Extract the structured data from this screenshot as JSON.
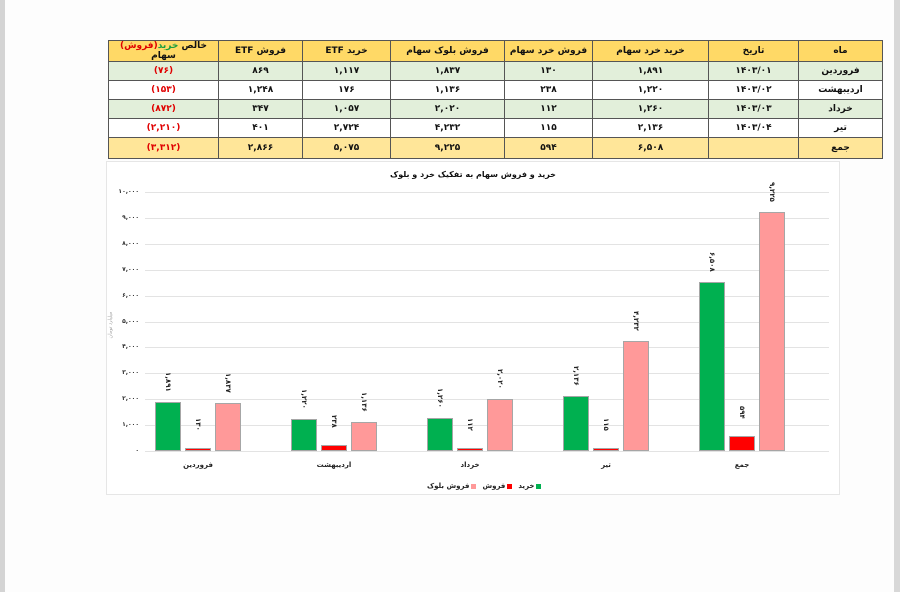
{
  "table": {
    "headers": [
      "ماه",
      "تاریخ",
      "خرید خرد سهام",
      "فروش خرد سهام",
      "فروش بلوک سهام",
      "خرید ETF",
      "فروش ETF"
    ],
    "net_header": {
      "prefix": "خالص ",
      "buy": "خرید",
      "sell": "(فروش)",
      "suffix": " سهام"
    },
    "rows": [
      {
        "month": "فروردین",
        "date": "۱۴۰۳/۰۱",
        "retail_buy": "۱,۸۹۱",
        "retail_sell": "۱۳۰",
        "block_sell": "۱,۸۳۷",
        "etf_buy": "۱,۱۱۷",
        "etf_sell": "۸۶۹",
        "net": "(۷۶)"
      },
      {
        "month": "اردیبهشت",
        "date": "۱۴۰۳/۰۲",
        "retail_buy": "۱,۲۲۰",
        "retail_sell": "۲۳۸",
        "block_sell": "۱,۱۳۶",
        "etf_buy": "۱۷۶",
        "etf_sell": "۱,۲۴۸",
        "net": "(۱۵۳)"
      },
      {
        "month": "خرداد",
        "date": "۱۴۰۳/۰۳",
        "retail_buy": "۱,۲۶۰",
        "retail_sell": "۱۱۲",
        "block_sell": "۲,۰۲۰",
        "etf_buy": "۱,۰۵۷",
        "etf_sell": "۳۴۷",
        "net": "(۸۷۲)"
      },
      {
        "month": "تیر",
        "date": "۱۴۰۳/۰۴",
        "retail_buy": "۲,۱۳۶",
        "retail_sell": "۱۱۵",
        "block_sell": "۴,۲۳۲",
        "etf_buy": "۲,۷۲۴",
        "etf_sell": "۴۰۱",
        "net": "(۲,۲۱۰)"
      }
    ],
    "total": {
      "month": "جمع",
      "date": "",
      "retail_buy": "۶,۵۰۸",
      "retail_sell": "۵۹۴",
      "block_sell": "۹,۲۲۵",
      "etf_buy": "۵,۰۷۵",
      "etf_sell": "۲,۸۶۶",
      "net": "(۳,۳۱۲)"
    }
  },
  "chart_data": {
    "type": "bar",
    "title": "خرید و فروش سهام به تفکیک خرد و بلوک",
    "xlabel": "",
    "ylabel": "میلیارد تومان",
    "ylim": [
      0,
      10000
    ],
    "yticks": [
      "۰",
      "۱,۰۰۰",
      "۲,۰۰۰",
      "۳,۰۰۰",
      "۴,۰۰۰",
      "۵,۰۰۰",
      "۶,۰۰۰",
      "۷,۰۰۰",
      "۸,۰۰۰",
      "۹,۰۰۰",
      "۱۰,۰۰۰"
    ],
    "categories": [
      "فروردین",
      "اردیبهشت",
      "خرداد",
      "تیر",
      "جمع"
    ],
    "series": [
      {
        "name": "خرید",
        "color": "#00b050",
        "values": [
          1891,
          1220,
          1260,
          2136,
          6508
        ],
        "labels": [
          "۱,۸۹۱",
          "۱,۲۲۰",
          "۱,۲۶۰",
          "۲,۱۳۶",
          "۶,۵۰۸"
        ]
      },
      {
        "name": "فروش",
        "color": "#ff0000",
        "values": [
          130,
          238,
          112,
          115,
          594
        ],
        "labels": [
          "۱۳۰",
          "۲۳۸",
          "۱۱۲",
          "۱۱۵",
          "۵۹۴"
        ]
      },
      {
        "name": "فروش بلوک",
        "color": "#ff9999",
        "values": [
          1837,
          1136,
          2020,
          4232,
          9225
        ],
        "labels": [
          "۱,۸۳۷",
          "۱,۱۳۶",
          "۲,۰۲۰",
          "۴,۲۳۲",
          "۹,۲۲۵"
        ]
      }
    ],
    "grid": true,
    "legend_position": "bottom"
  }
}
